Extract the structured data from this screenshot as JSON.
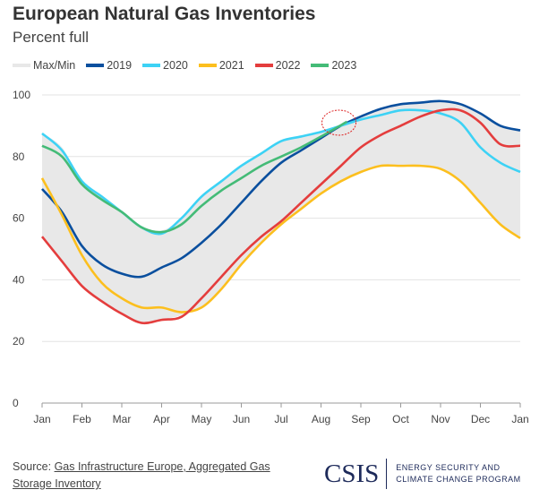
{
  "chart_data": {
    "type": "line",
    "title": "European Natural Gas Inventories",
    "subtitle": "Percent full",
    "xlabel": "",
    "ylabel": "",
    "ylim": [
      0,
      100
    ],
    "yticks": [
      0,
      20,
      40,
      60,
      80,
      100
    ],
    "xlim": [
      0,
      12
    ],
    "xtick_labels": [
      "Jan",
      "Feb",
      "Mar",
      "Apr",
      "May",
      "Jun",
      "Jul",
      "Aug",
      "Sep",
      "Oct",
      "Nov",
      "Dec",
      "Jan"
    ],
    "grid": "horizontal",
    "legend_placement": "top-left",
    "x": [
      0,
      0.5,
      1,
      1.5,
      2,
      2.5,
      3,
      3.5,
      4,
      4.5,
      5,
      5.5,
      6,
      6.5,
      7,
      7.5,
      8,
      8.5,
      9,
      9.5,
      10,
      10.5,
      11,
      11.5,
      12
    ],
    "band": {
      "name": "Max/Min",
      "color": "#e8e8e8",
      "max": [
        87.5,
        83,
        72,
        67,
        62,
        57,
        56,
        60,
        67,
        72,
        77,
        81,
        85,
        86.5,
        88,
        90,
        93,
        95.5,
        97,
        97.5,
        98,
        97,
        94,
        90,
        88.5
      ],
      "min": [
        54,
        46,
        38,
        33,
        29,
        26,
        27,
        28.5,
        31,
        37,
        45,
        52,
        58,
        63,
        68,
        72,
        75,
        77,
        77,
        77,
        76,
        72,
        65,
        58,
        53.5
      ]
    },
    "series": [
      {
        "name": "2019",
        "color": "#0a4f9e",
        "values": [
          69.5,
          62,
          51,
          45,
          42,
          41,
          44,
          47,
          52,
          58,
          65,
          72,
          78,
          82,
          86,
          90,
          93,
          95.5,
          97,
          97.5,
          98,
          97,
          94,
          90,
          88.5
        ]
      },
      {
        "name": "2020",
        "color": "#3dd2f5",
        "values": [
          87.5,
          82,
          72,
          67,
          62,
          57,
          55,
          60,
          67,
          72,
          77,
          81,
          85,
          86.5,
          88,
          90,
          92,
          93.5,
          95,
          95,
          94,
          91,
          83,
          78,
          75
        ]
      },
      {
        "name": "2021",
        "color": "#fcbf1e",
        "values": [
          73,
          61,
          48,
          39,
          34,
          31,
          31,
          29.5,
          31,
          37,
          45,
          52,
          58,
          63,
          68,
          72,
          75,
          77,
          77,
          77,
          76,
          72,
          65,
          58,
          53.5
        ]
      },
      {
        "name": "2022",
        "color": "#e43d3d",
        "values": [
          54,
          46,
          38,
          33,
          29,
          26,
          27,
          28,
          34,
          41,
          48,
          54,
          59,
          65,
          71,
          77,
          83,
          87,
          90,
          93,
          95,
          95,
          91,
          84,
          83.5
        ]
      },
      {
        "name": "2023",
        "color": "#44bb77",
        "x": [
          0,
          0.5,
          1,
          1.5,
          2,
          2.5,
          3,
          3.5,
          4,
          4.5,
          5,
          5.5,
          6,
          6.5,
          7,
          7.65
        ],
        "values": [
          83.5,
          80,
          71,
          66,
          62,
          57,
          55.5,
          58,
          64,
          69,
          73,
          77,
          80,
          83,
          86.5,
          91.3
        ]
      }
    ],
    "annotation": {
      "type": "circle",
      "color": "#dd2222",
      "x": 7.45,
      "y": 91
    }
  },
  "source": {
    "prefix": "Source: ",
    "link": "Gas Infrastructure Europe, Aggregated Gas Storage Inventory"
  },
  "logo": {
    "name": "CSIS",
    "line1": "ENERGY SECURITY AND",
    "line2": "CLIMATE CHANGE PROGRAM"
  }
}
